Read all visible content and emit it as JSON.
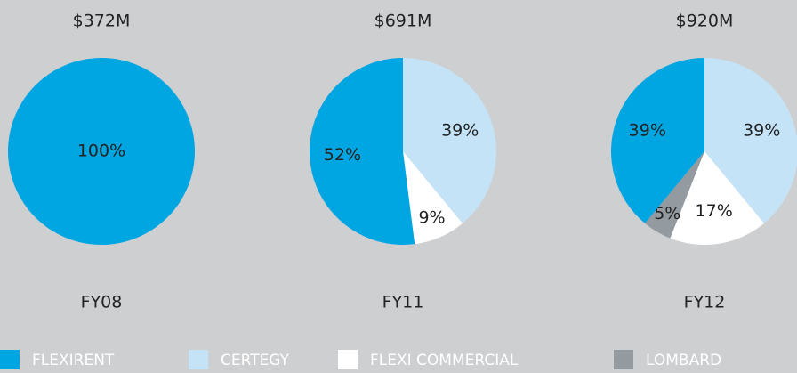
{
  "chart_data": [
    {
      "type": "pie",
      "title": "$372M",
      "xlabel": "FY08",
      "categories": [
        "FLEXIRENT"
      ],
      "values": [
        100
      ],
      "value_labels": [
        "100%"
      ]
    },
    {
      "type": "pie",
      "title": "$691M",
      "xlabel": "FY11",
      "categories": [
        "CERTEGY",
        "FLEXI COMMERCIAL",
        "FLEXIRENT"
      ],
      "values": [
        39,
        9,
        52
      ],
      "value_labels": [
        "39%",
        "9%",
        "52%"
      ]
    },
    {
      "type": "pie",
      "title": "$920M",
      "xlabel": "FY12",
      "categories": [
        "CERTEGY",
        "FLEXI COMMERCIAL",
        "LOMBARD",
        "FLEXIRENT"
      ],
      "values": [
        39,
        17,
        5,
        39
      ],
      "value_labels": [
        "39%",
        "17%",
        "5%",
        "39%"
      ]
    }
  ],
  "legend": [
    {
      "name": "FLEXIRENT",
      "color": "#00a6e2"
    },
    {
      "name": "CERTEGY",
      "color": "#c5e3f6"
    },
    {
      "name": "FLEXI COMMERCIAL",
      "color": "#ffffff"
    },
    {
      "name": "LOMBARD",
      "color": "#939aa0"
    }
  ]
}
